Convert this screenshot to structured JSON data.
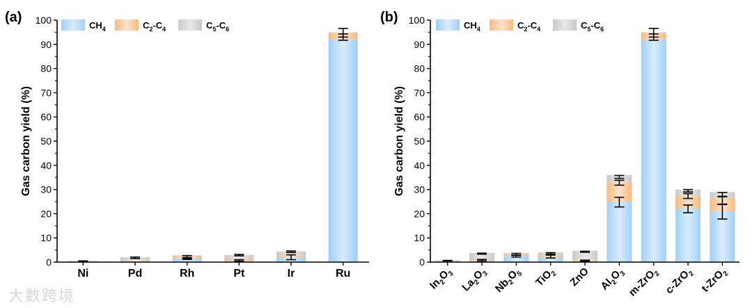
{
  "watermark": "大数跨境",
  "colors": {
    "ch4": "#9fd0f7",
    "c2c4": "#f8ba7c",
    "c5c6": "#c9c9c9",
    "axis": "#000000"
  },
  "chart_data": [
    {
      "type": "bar",
      "stacked": true,
      "panel_label": "(a)",
      "ylabel": "Gas carbon yield (%)",
      "xlabel": "",
      "ylim": [
        0,
        100
      ],
      "yticks": [
        0,
        10,
        20,
        30,
        40,
        50,
        60,
        70,
        80,
        90,
        100
      ],
      "grid": false,
      "legend_position": "top-left",
      "categories": [
        {
          "label": "Ni"
        },
        {
          "label": "Pd"
        },
        {
          "label": "Rh"
        },
        {
          "label": "Pt"
        },
        {
          "label": "Ir"
        },
        {
          "label": "Ru"
        }
      ],
      "series": [
        {
          "name": "CH4",
          "name_base": "CH",
          "name_sub": "4",
          "color": "#9fd0f7",
          "values": [
            0.2,
            0.3,
            1.5,
            0.5,
            2.0,
            92.0
          ]
        },
        {
          "name": "C2-C4",
          "name_base": "C",
          "name_sub": "2",
          "name_mid": "-C",
          "name_sub2": "4",
          "color": "#f8ba7c",
          "values": [
            0.1,
            0.3,
            0.8,
            1.0,
            0.8,
            2.8
          ]
        },
        {
          "name": "C5-C6",
          "name_base": "C",
          "name_sub": "5",
          "name_mid": "-C",
          "name_sub2": "6",
          "color": "#c9c9c9",
          "values": [
            0.2,
            1.4,
            0.5,
            1.5,
            1.6,
            0.2
          ]
        }
      ],
      "error_bars": [
        {
          "category": "Ni",
          "center": 0.4,
          "err": 0.1
        },
        {
          "category": "Pd",
          "center": 1.8,
          "err": 0.3
        },
        {
          "category": "Rh",
          "center": 2.1,
          "err": 0.6
        },
        {
          "category": "Rh",
          "center": 1.5,
          "err": 0.4
        },
        {
          "category": "Pt",
          "center": 2.9,
          "err": 0.3
        },
        {
          "category": "Pt",
          "center": 0.7,
          "err": 0.3
        },
        {
          "category": "Ir",
          "center": 4.3,
          "err": 0.3
        },
        {
          "category": "Ir",
          "center": 2.0,
          "err": 1.0
        },
        {
          "category": "Ru",
          "center": 94.8,
          "err": 1.8
        },
        {
          "category": "Ru",
          "center": 93.0,
          "err": 1.3
        }
      ]
    },
    {
      "type": "bar",
      "stacked": true,
      "panel_label": "(b)",
      "ylabel": "Gas carbon yield (%)",
      "xlabel": "",
      "ylim": [
        0,
        100
      ],
      "yticks": [
        0,
        10,
        20,
        30,
        40,
        50,
        60,
        70,
        80,
        90,
        100
      ],
      "grid": false,
      "legend_position": "top-left",
      "categories": [
        {
          "label": "In2O3",
          "parts": [
            "In",
            "2",
            "O",
            "3"
          ]
        },
        {
          "label": "La2O3",
          "parts": [
            "La",
            "2",
            "O",
            "3"
          ]
        },
        {
          "label": "Nb2O5",
          "parts": [
            "Nb",
            "2",
            "O",
            "5"
          ]
        },
        {
          "label": "TiO2",
          "parts": [
            "TiO",
            "2"
          ]
        },
        {
          "label": "ZnO",
          "parts": [
            "ZnO"
          ]
        },
        {
          "label": "Al2O3",
          "parts": [
            "Al",
            "2",
            "O",
            "3"
          ]
        },
        {
          "label": "m-ZrO2",
          "parts": [
            "m-ZrO",
            "2"
          ]
        },
        {
          "label": "c-ZrO2",
          "parts": [
            "c-ZrO",
            "2"
          ]
        },
        {
          "label": "t-ZrO2",
          "parts": [
            "t-ZrO",
            "2"
          ]
        }
      ],
      "series": [
        {
          "name": "CH4",
          "name_base": "CH",
          "name_sub": "4",
          "color": "#9fd0f7",
          "values": [
            0.2,
            0.5,
            2.5,
            2.0,
            0.3,
            25.0,
            92.0,
            22.0,
            21.0
          ]
        },
        {
          "name": "C2-C4",
          "name_base": "C",
          "name_sub": "2",
          "name_mid": "-C",
          "name_sub2": "4",
          "color": "#f8ba7c",
          "values": [
            0.1,
            0.5,
            0.7,
            0.8,
            0.6,
            8.0,
            2.8,
            5.5,
            5.5
          ]
        },
        {
          "name": "C5-C6",
          "name_base": "C",
          "name_sub": "5",
          "name_mid": "-C",
          "name_sub2": "6",
          "color": "#c9c9c9",
          "values": [
            0.5,
            2.8,
            0.5,
            1.2,
            3.8,
            3.0,
            0.2,
            2.5,
            2.5
          ]
        }
      ],
      "error_bars": [
        {
          "category": "In2O3",
          "center": 0.6,
          "err": 0.1
        },
        {
          "category": "La2O3",
          "center": 3.5,
          "err": 0.2
        },
        {
          "category": "La2O3",
          "center": 0.8,
          "err": 0.3
        },
        {
          "category": "Nb2O5",
          "center": 3.2,
          "err": 0.4
        },
        {
          "category": "Nb2O5",
          "center": 2.5,
          "err": 0.4
        },
        {
          "category": "TiO2",
          "center": 3.6,
          "err": 0.3
        },
        {
          "category": "TiO2",
          "center": 2.3,
          "err": 0.6
        },
        {
          "category": "ZnO",
          "center": 4.3,
          "err": 0.2
        },
        {
          "category": "ZnO",
          "center": 0.6,
          "err": 0.2
        },
        {
          "category": "Al2O3",
          "center": 35.2,
          "err": 0.6
        },
        {
          "category": "Al2O3",
          "center": 32.8,
          "err": 1.0
        },
        {
          "category": "Al2O3",
          "center": 24.8,
          "err": 2.0
        },
        {
          "category": "m-ZrO2",
          "center": 94.8,
          "err": 1.8
        },
        {
          "category": "m-ZrO2",
          "center": 93.0,
          "err": 1.3
        },
        {
          "category": "c-ZrO2",
          "center": 29.5,
          "err": 0.5
        },
        {
          "category": "c-ZrO2",
          "center": 27.3,
          "err": 1.0
        },
        {
          "category": "c-ZrO2",
          "center": 22.0,
          "err": 1.6
        },
        {
          "category": "t-ZrO2",
          "center": 28.0,
          "err": 0.8
        },
        {
          "category": "t-ZrO2",
          "center": 25.5,
          "err": 1.5
        },
        {
          "category": "t-ZrO2",
          "center": 20.8,
          "err": 3.0
        }
      ]
    }
  ]
}
